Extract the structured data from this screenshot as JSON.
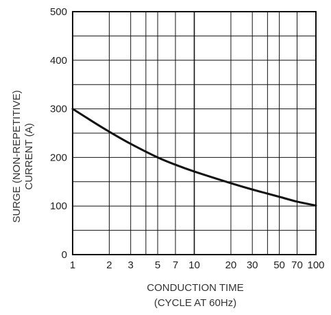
{
  "chart_data": {
    "type": "line",
    "title": "",
    "xlabel": "CONDUCTION TIME",
    "xlabel_sub": "(CYCLE AT 60Hz)",
    "ylabel": "SURGE (NON-REPETITIVE)",
    "ylabel_sub": "CURRENT   (A)",
    "xscale": "log",
    "xlim": [
      1,
      100
    ],
    "ylim": [
      0,
      500
    ],
    "grid": true,
    "x_ticks": [
      1,
      2,
      3,
      5,
      7,
      10,
      20,
      30,
      50,
      70,
      100
    ],
    "x_tick_labels": [
      "1",
      "2",
      "3",
      "5",
      "7",
      "10",
      "20",
      "30",
      "50",
      "70",
      "100"
    ],
    "x_minor_grid": [
      4,
      40
    ],
    "y_ticks": [
      0,
      100,
      200,
      300,
      400,
      500
    ],
    "y_tick_labels": [
      "0",
      "100",
      "200",
      "300",
      "400",
      "500"
    ],
    "y_minor_grid": [
      50,
      150,
      250,
      350,
      450
    ],
    "series": [
      {
        "x": [
          1,
          1.5,
          2,
          3,
          5,
          7,
          10,
          20,
          30,
          50,
          70,
          100
        ],
        "values": [
          300,
          272,
          253,
          228,
          200,
          185,
          171,
          147,
          134,
          119,
          109,
          101
        ]
      }
    ]
  }
}
